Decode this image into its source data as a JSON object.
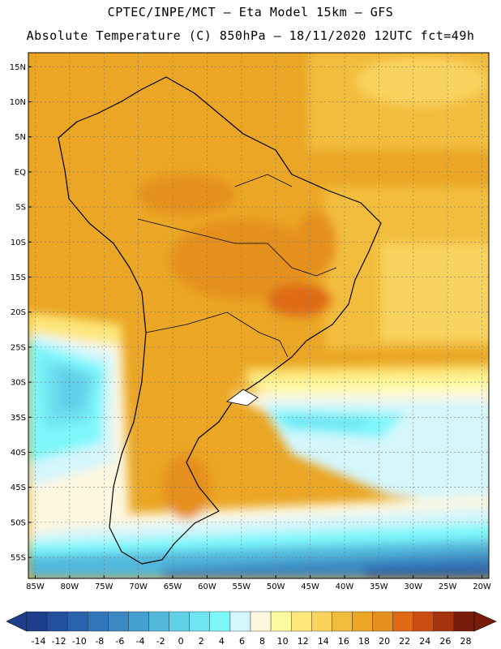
{
  "header": {
    "line1": "CPTEC/INPE/MCT –   Eta Model 15km – GFS",
    "line2": "Absolute Temperature (C) 850hPa – 18/11/2020 12UTC fct=49h"
  },
  "map": {
    "lat_labels": [
      "15N",
      "10N",
      "5N",
      "EQ",
      "5S",
      "10S",
      "15S",
      "20S",
      "25S",
      "30S",
      "35S",
      "40S",
      "45S",
      "50S",
      "55S"
    ],
    "lat_values": [
      15,
      10,
      5,
      0,
      -5,
      -10,
      -15,
      -20,
      -25,
      -30,
      -35,
      -40,
      -45,
      -50,
      -55
    ],
    "lon_labels": [
      "85W",
      "80W",
      "75W",
      "70W",
      "65W",
      "60W",
      "55W",
      "50W",
      "45W",
      "40W",
      "35W",
      "30W",
      "25W",
      "20W"
    ],
    "lon_values": [
      -85,
      -80,
      -75,
      -70,
      -65,
      -60,
      -55,
      -50,
      -45,
      -40,
      -35,
      -30,
      -25,
      -20
    ],
    "lat_range": [
      -58,
      17
    ],
    "lon_range": [
      -86,
      -19
    ],
    "grid": true
  },
  "colorbar": {
    "labels": [
      "-14",
      "-12",
      "-10",
      "-8",
      "-6",
      "-4",
      "-2",
      "0",
      "2",
      "4",
      "6",
      "8",
      "10",
      "12",
      "14",
      "16",
      "18",
      "20",
      "22",
      "24",
      "26",
      "28"
    ],
    "colors": [
      "#1d3e8c",
      "#23509c",
      "#2a62ab",
      "#3275b8",
      "#3b88c3",
      "#45a0cf",
      "#52b8dc",
      "#60cfe8",
      "#6fe4f2",
      "#7ef7fb",
      "#d4f6fc",
      "#fdf7e0",
      "#fefaa0",
      "#fde67a",
      "#f9d35e",
      "#f2bd3d",
      "#eaa624",
      "#e5901c",
      "#df6a15",
      "#cc4d12",
      "#a7320e",
      "#7a1c0c"
    ]
  }
}
